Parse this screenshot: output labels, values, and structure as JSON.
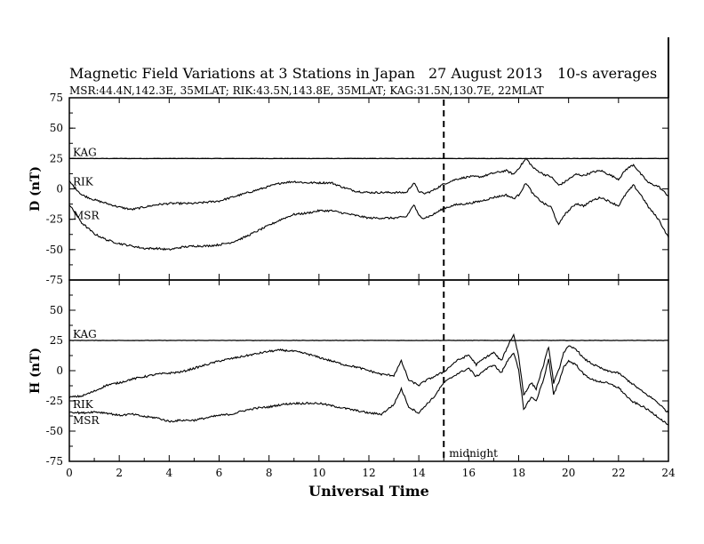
{
  "chart_data": {
    "type": "line",
    "title": "Magnetic Field Variations at 3 Stations in Japan",
    "date": "27  August  2013",
    "averaging": "10-s averages",
    "stations_line": "MSR:44.4N,142.3E, 35MLAT;   RIK:43.5N,143.8E, 35MLAT;   KAG:31.5N,130.7E, 22MLAT",
    "xlabel": "Universal Time",
    "xlim": [
      0,
      24
    ],
    "xticks": [
      0,
      2,
      4,
      6,
      8,
      10,
      12,
      14,
      16,
      18,
      20,
      22,
      24
    ],
    "grid": false,
    "annotation": {
      "label": "midnight",
      "x": 15
    },
    "panels": [
      {
        "ylabel": "D (nT)",
        "ylim": [
          -75,
          75
        ],
        "yticks": [
          -75,
          -50,
          -25,
          0,
          25,
          50,
          75
        ],
        "series": [
          {
            "name": "KAG",
            "x": [
              0,
              24
            ],
            "y": [
              25,
              25
            ]
          },
          {
            "name": "RIK",
            "x": [
              0,
              0.5,
              1,
              1.5,
              2,
              2.5,
              3,
              3.5,
              4,
              4.5,
              5,
              5.5,
              6,
              6.5,
              7,
              7.5,
              8,
              8.5,
              9,
              9.5,
              10,
              10.5,
              11,
              11.5,
              12,
              12.5,
              13,
              13.5,
              13.8,
              14,
              14.2,
              14.5,
              15,
              15.5,
              16,
              16.5,
              17,
              17.5,
              17.8,
              18,
              18.3,
              18.6,
              19,
              19.3,
              19.6,
              19.8,
              20,
              20.3,
              20.6,
              21,
              21.3,
              21.6,
              22,
              22.3,
              22.6,
              22.9,
              23.2,
              23.6,
              24
            ],
            "y": [
              6,
              -5,
              -9,
              -12,
              -15,
              -17,
              -15,
              -13,
              -12,
              -12,
              -12,
              -11,
              -10,
              -7,
              -4,
              -1,
              2,
              5,
              6,
              5,
              5,
              5,
              1,
              -2,
              -3,
              -3,
              -3,
              -3,
              5,
              -2,
              -4,
              -2,
              4,
              8,
              10,
              10,
              13,
              15,
              12,
              17,
              25,
              17,
              12,
              10,
              3,
              5,
              8,
              12,
              11,
              14,
              15,
              12,
              8,
              16,
              20,
              12,
              5,
              2,
              -6
            ]
          },
          {
            "name": "MSR",
            "x": [
              0,
              0.5,
              1,
              1.5,
              2,
              2.5,
              3,
              3.5,
              4,
              4.5,
              5,
              5.5,
              6,
              6.5,
              7,
              7.5,
              8,
              8.5,
              9,
              9.5,
              10,
              10.5,
              11,
              11.5,
              12,
              12.5,
              13,
              13.5,
              13.8,
              14,
              14.2,
              14.5,
              15,
              15.5,
              16,
              16.5,
              17,
              17.5,
              17.8,
              18,
              18.3,
              18.6,
              19,
              19.3,
              19.6,
              19.8,
              20,
              20.3,
              20.6,
              21,
              21.3,
              21.6,
              22,
              22.3,
              22.6,
              22.9,
              23.2,
              23.6,
              24
            ],
            "y": [
              -13,
              -28,
              -37,
              -42,
              -45,
              -47,
              -49,
              -49,
              -50,
              -48,
              -47,
              -47,
              -46,
              -44,
              -40,
              -35,
              -30,
              -25,
              -21,
              -20,
              -18,
              -18,
              -20,
              -22,
              -24,
              -24,
              -24,
              -23,
              -13,
              -22,
              -24,
              -22,
              -16,
              -13,
              -12,
              -10,
              -7,
              -5,
              -8,
              -5,
              5,
              -5,
              -12,
              -15,
              -30,
              -22,
              -18,
              -12,
              -14,
              -9,
              -7,
              -10,
              -14,
              -4,
              3,
              -5,
              -15,
              -25,
              -40
            ]
          }
        ]
      },
      {
        "ylabel": "H (nT)",
        "ylim": [
          -75,
          75
        ],
        "yticks": [
          -75,
          -50,
          -25,
          0,
          25,
          50,
          75
        ],
        "series": [
          {
            "name": "KAG",
            "x": [
              0,
              24
            ],
            "y": [
              25,
              25
            ]
          },
          {
            "name": "RIK",
            "x": [
              0,
              0.5,
              1,
              1.5,
              2,
              2.5,
              3,
              3.5,
              4,
              4.5,
              5,
              5.5,
              6,
              6.5,
              7,
              7.5,
              8,
              8.5,
              9,
              9.5,
              10,
              10.5,
              11,
              11.5,
              12,
              12.5,
              13,
              13.3,
              13.6,
              14,
              14.3,
              14.6,
              15,
              15.5,
              16,
              16.3,
              16.6,
              17,
              17.3,
              17.6,
              17.8,
              18,
              18.2,
              18.5,
              18.7,
              19,
              19.2,
              19.4,
              19.6,
              19.8,
              20,
              20.3,
              20.6,
              21,
              21.5,
              22,
              22.5,
              23,
              23.5,
              24
            ],
            "y": [
              -22,
              -21,
              -17,
              -12,
              -10,
              -7,
              -5,
              -3,
              -2,
              -1,
              2,
              5,
              8,
              10,
              12,
              14,
              16,
              17,
              16,
              14,
              11,
              8,
              5,
              3,
              0,
              -3,
              -4,
              8,
              -8,
              -12,
              -8,
              -5,
              -1,
              8,
              13,
              5,
              10,
              15,
              8,
              22,
              30,
              12,
              -20,
              -10,
              -15,
              5,
              20,
              -10,
              0,
              15,
              20,
              18,
              10,
              5,
              0,
              -2,
              -10,
              -18,
              -25,
              -35
            ]
          },
          {
            "name": "MSR",
            "x": [
              0,
              0.5,
              1,
              1.5,
              2,
              2.5,
              3,
              3.5,
              4,
              4.5,
              5,
              5.5,
              6,
              6.5,
              7,
              7.5,
              8,
              8.5,
              9,
              9.5,
              10,
              10.5,
              11,
              11.5,
              12,
              12.5,
              13,
              13.3,
              13.6,
              14,
              14.3,
              14.6,
              15,
              15.5,
              16,
              16.3,
              16.6,
              17,
              17.3,
              17.6,
              17.8,
              18,
              18.2,
              18.5,
              18.7,
              19,
              19.2,
              19.4,
              19.6,
              19.8,
              20,
              20.3,
              20.6,
              21,
              21.5,
              22,
              22.5,
              23,
              23.5,
              24
            ],
            "y": [
              -34,
              -35,
              -34,
              -35,
              -37,
              -36,
              -38,
              -39,
              -42,
              -41,
              -41,
              -39,
              -37,
              -36,
              -33,
              -31,
              -30,
              -28,
              -27,
              -27,
              -27,
              -29,
              -31,
              -33,
              -35,
              -36,
              -28,
              -15,
              -30,
              -35,
              -28,
              -22,
              -10,
              -3,
              2,
              -5,
              0,
              5,
              -2,
              10,
              15,
              0,
              -32,
              -22,
              -25,
              -7,
              10,
              -20,
              -10,
              3,
              8,
              5,
              -3,
              -8,
              -10,
              -14,
              -25,
              -30,
              -37,
              -45
            ]
          }
        ]
      }
    ]
  }
}
